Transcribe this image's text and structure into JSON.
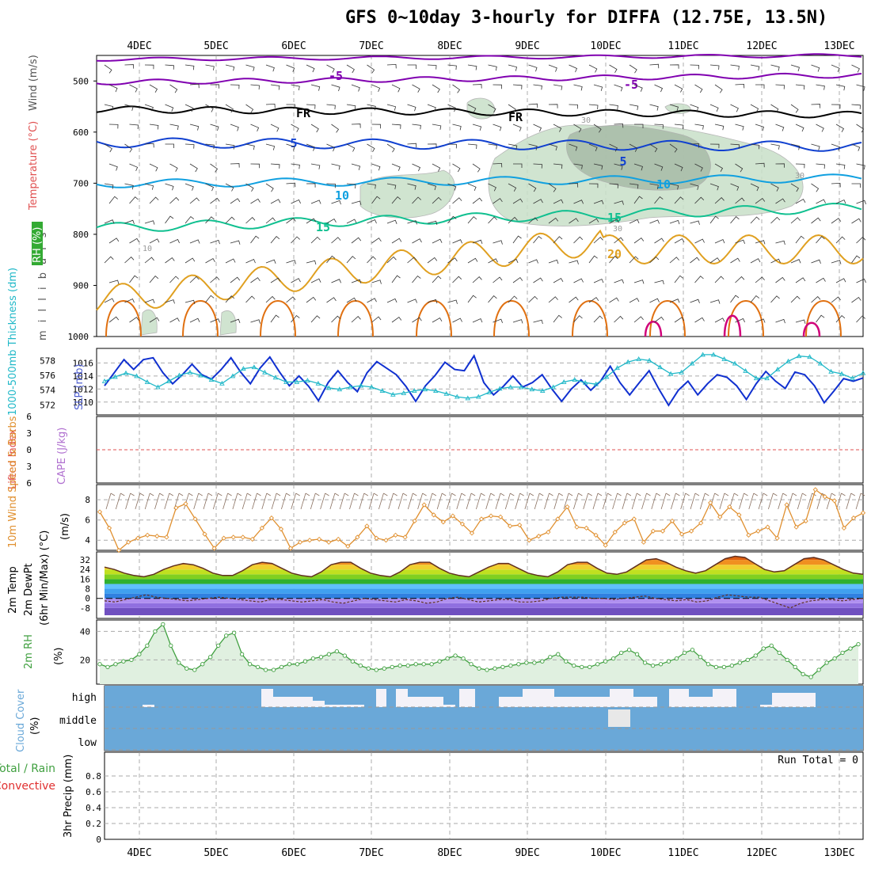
{
  "title": "GFS 0~10day 3-hourly for DIFFA (12.75E, 13.5N)",
  "dates": [
    "4DEC",
    "5DEC",
    "6DEC",
    "7DEC",
    "8DEC",
    "9DEC",
    "10DEC",
    "11DEC",
    "12DEC",
    "13DEC"
  ],
  "colors": {
    "wind500": "#8000b0",
    "frz": "#000000",
    "t5": "#1040d0",
    "t10": "#10a0e0",
    "t15": "#10c090",
    "t20": "#e0a020",
    "t25": "#e07010",
    "t30": "#d0007a",
    "rh": "#c8e0c8",
    "slp": "#1030d0",
    "thick": "#20b8c8",
    "wind10": "#e09030",
    "cloud": "#6aa8d8",
    "rh2m": "#40a040"
  },
  "chart_data": [
    {
      "type": "contour",
      "panel": "upper-air",
      "ylabel": "m i l l i b a r s",
      "yticks": [
        500,
        600,
        700,
        800,
        900,
        1000
      ],
      "legend": [
        {
          "label": "Wind (m/s)",
          "color": "#000000"
        },
        {
          "label": "Temperature (°C)",
          "color": "#e05050"
        },
        {
          "label": "RH (%)",
          "color": "#40c040"
        }
      ],
      "contour_labels": [
        "-5",
        "-5",
        "FR",
        "FR",
        "5",
        "5",
        "10",
        "10",
        "15",
        "15",
        "20",
        "30",
        "30",
        "30",
        "10"
      ]
    },
    {
      "type": "line",
      "panel": "slp-thickness",
      "ylabel_left": "1000-500mb Thickness (dm)",
      "ylabel_right": "SLP (mb)",
      "yticks_left": [
        572,
        574,
        576,
        578
      ],
      "yticks_right": [
        1010,
        1012,
        1014,
        1016
      ],
      "series": [
        {
          "name": "SLP (mb)",
          "values": [
            1012.5,
            1014.5,
            1016.5,
            1015,
            1016.5,
            1016.8,
            1014.5,
            1012.8,
            1014.2,
            1015.8,
            1014.2,
            1013.5,
            1015,
            1016.8,
            1014.6,
            1012.8,
            1015.2,
            1016.9,
            1014.6,
            1012.5,
            1014,
            1012.4,
            1010.2,
            1013,
            1014.8,
            1013,
            1011.6,
            1014.5,
            1016.2,
            1015.2,
            1014.2,
            1012.4,
            1010.1,
            1012.5,
            1014.1,
            1016.1,
            1015,
            1014.8,
            1017.1,
            1013,
            1011.1,
            1012.4,
            1014,
            1012.3,
            1013,
            1014.2,
            1012,
            1010.1,
            1012,
            1013.4,
            1011.8,
            1013.2,
            1015.5,
            1013,
            1011.1,
            1013,
            1014.8,
            1012,
            1009.5,
            1011.8,
            1013.2,
            1011.1,
            1012.8,
            1014.2,
            1013.8,
            1012.5,
            1010.4,
            1012.8,
            1014.7,
            1013.2,
            1012.1,
            1014.6,
            1014.2,
            1012.5,
            1009.9,
            1011.7,
            1013.6,
            1013.2,
            1013.7
          ]
        },
        {
          "name": "1000-500mb Thickness (dm)",
          "values": [
            575.2,
            575.8,
            576.3,
            575.9,
            575.1,
            574.4,
            575.2,
            576.0,
            576.4,
            576.0,
            575.4,
            574.9,
            575.9,
            576.9,
            577.1,
            576.4,
            575.7,
            575.1,
            575.1,
            575.3,
            574.9,
            574.3,
            574.1,
            574.4,
            574.6,
            574.4,
            573.9,
            573.4,
            573.6,
            573.9,
            574.1,
            573.9,
            573.5,
            573.1,
            572.9,
            573.1,
            573.7,
            574.2,
            574.4,
            574.4,
            574.1,
            573.9,
            574.4,
            575.1,
            575.4,
            575.0,
            574.8,
            575.8,
            577.0,
            577.8,
            578.2,
            578.0,
            577.1,
            576.2,
            576.4,
            577.6,
            578.8,
            578.8,
            578.2,
            577.6,
            576.6,
            575.6,
            575.6,
            576.8,
            577.9,
            578.6,
            578.5,
            577.6,
            576.5,
            576.2,
            575.6,
            576.3
          ]
        }
      ]
    },
    {
      "type": "line",
      "panel": "cape-li",
      "ylabel_left": "Lifted Index",
      "ylabel_right": "CAPE (J/kg)",
      "yticks": [
        -6,
        -3,
        0,
        3,
        6
      ],
      "yticks_shown": [
        "6",
        "3",
        "0",
        "3",
        "6"
      ],
      "series": [
        {
          "name": "Lifted Index",
          "values": []
        }
      ]
    },
    {
      "type": "line",
      "panel": "wind10m",
      "ylabel": "10m Wind Speed & Barbs",
      "yunit": "(m/s)",
      "yticks": [
        4,
        6,
        8
      ],
      "series": [
        {
          "name": "10m Wind Speed",
          "values": [
            6.8,
            5.2,
            3.0,
            3.8,
            4.2,
            4.5,
            4.4,
            4.3,
            7.2,
            7.6,
            6.1,
            4.6,
            3.2,
            4.2,
            4.3,
            4.3,
            4.1,
            5.2,
            6.2,
            5.1,
            3.2,
            3.8,
            4.0,
            4.1,
            3.8,
            4.1,
            3.4,
            4.3,
            5.4,
            4.2,
            4.0,
            4.5,
            4.3,
            5.9,
            7.5,
            6.5,
            5.8,
            6.4,
            5.6,
            4.7,
            6.1,
            6.4,
            6.3,
            5.4,
            5.5,
            4.0,
            4.4,
            4.8,
            6.1,
            7.3,
            5.3,
            5.2,
            4.5,
            3.5,
            4.8,
            5.7,
            6.1,
            3.8,
            4.9,
            4.9,
            5.9,
            4.6,
            4.9,
            5.7,
            7.7,
            6.3,
            7.3,
            6.5,
            4.5,
            4.9,
            5.3,
            4.2,
            7.5,
            5.3,
            5.9,
            9.0,
            8.3,
            7.9,
            5.2,
            6.2,
            6.7
          ]
        }
      ]
    },
    {
      "type": "area",
      "panel": "temp-dewpoint",
      "ylabel": "2m Temp 2m DewPt (6hr Min/Max) (°C)",
      "yticks": [
        -8,
        0,
        8,
        16,
        24,
        32
      ],
      "series": [
        {
          "name": "2m Temp",
          "values": [
            26,
            24,
            21,
            19,
            18,
            20,
            24,
            27,
            29,
            28,
            25,
            21,
            19,
            19,
            23,
            28,
            30,
            29,
            25,
            21,
            19,
            18,
            22,
            28,
            30,
            30,
            25,
            21,
            19,
            18,
            22,
            28,
            30,
            30,
            25,
            21,
            19,
            18,
            22,
            26,
            29,
            29,
            25,
            21,
            19,
            18,
            22,
            28,
            30,
            30,
            25,
            21,
            20,
            22,
            27,
            32,
            33,
            30,
            26,
            23,
            21,
            23,
            28,
            33,
            35,
            34,
            29,
            24,
            22,
            23,
            28,
            33,
            34,
            32,
            28,
            24,
            21,
            20
          ]
        },
        {
          "name": "2m DewPt",
          "values": [
            -2,
            -3,
            -1,
            1,
            3,
            1,
            0,
            -1,
            -2,
            -1,
            0,
            1,
            0,
            -1,
            -2,
            -3,
            -1,
            -1,
            -2,
            -3,
            -2,
            -1,
            -3,
            -4,
            -2,
            0,
            -1,
            -2,
            -3,
            -1,
            -2,
            -4,
            -3,
            0,
            1,
            -1,
            -3,
            -2,
            -1,
            -1,
            -3,
            -3,
            -2,
            0,
            1,
            1,
            1,
            0,
            0,
            -1,
            0,
            1,
            2,
            0,
            -1,
            -2,
            -1,
            -3,
            -2,
            1,
            3,
            2,
            1,
            1,
            -2,
            -5,
            -8,
            -4,
            -2,
            -1,
            -1,
            -2,
            -1,
            0
          ]
        }
      ]
    },
    {
      "type": "area",
      "panel": "rh2m",
      "ylabel": "2m RH",
      "yunit": "(%)",
      "yticks": [
        20,
        40
      ],
      "series": [
        {
          "name": "2m RH",
          "values": [
            17,
            15,
            17,
            19,
            20,
            24,
            30,
            40,
            45,
            30,
            18,
            14,
            13,
            17,
            22,
            30,
            37,
            39,
            24,
            17,
            15,
            13,
            13,
            15,
            17,
            17,
            19,
            21,
            22,
            24,
            26,
            23,
            19,
            16,
            14,
            13,
            14,
            15,
            16,
            16,
            17,
            17,
            17,
            19,
            21,
            23,
            21,
            17,
            14,
            13,
            14,
            15,
            16,
            17,
            18,
            18,
            19,
            22,
            24,
            19,
            16,
            15,
            15,
            17,
            19,
            21,
            25,
            27,
            24,
            18,
            16,
            17,
            19,
            21,
            25,
            27,
            22,
            17,
            15,
            15,
            16,
            18,
            20,
            23,
            28,
            30,
            25,
            20,
            15,
            10,
            8,
            13,
            18,
            21,
            25,
            28,
            31
          ]
        }
      ]
    },
    {
      "type": "bar",
      "panel": "cloud-cover",
      "ylabel": "Cloud Cover",
      "yunit": "(%)",
      "levels": [
        "high",
        "middle",
        "low"
      ],
      "run_total": "Run Total = 0"
    },
    {
      "type": "line",
      "panel": "precip",
      "ylabel": "3hr Precip (mm)",
      "legend": [
        {
          "label": "Total / Rain",
          "color": "#40a040"
        },
        {
          "label": "Convective",
          "color": "#e03030"
        }
      ],
      "yticks": [
        "0",
        "0.2",
        "0.4",
        "0.6",
        "0.8"
      ],
      "series": [
        {
          "name": "3hr Precip",
          "values": [
            0
          ]
        }
      ]
    }
  ]
}
